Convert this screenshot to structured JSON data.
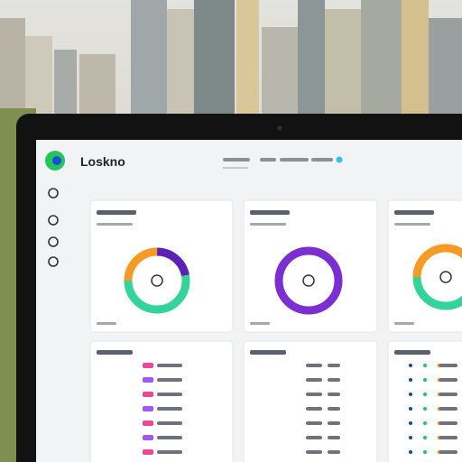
{
  "app": {
    "name": "Loskno"
  },
  "donuts": [
    {
      "segments": [
        {
          "color": "#f59a23",
          "value": 25
        },
        {
          "color": "#5b21b6",
          "value": 22
        },
        {
          "color": "#34d399",
          "value": 53
        }
      ]
    },
    {
      "segments": [
        {
          "color": "#7c2fd0",
          "value": 100
        }
      ]
    },
    {
      "segments": [
        {
          "color": "#f59a23",
          "value": 45
        },
        {
          "color": "#34d399",
          "value": 55
        }
      ]
    }
  ]
}
